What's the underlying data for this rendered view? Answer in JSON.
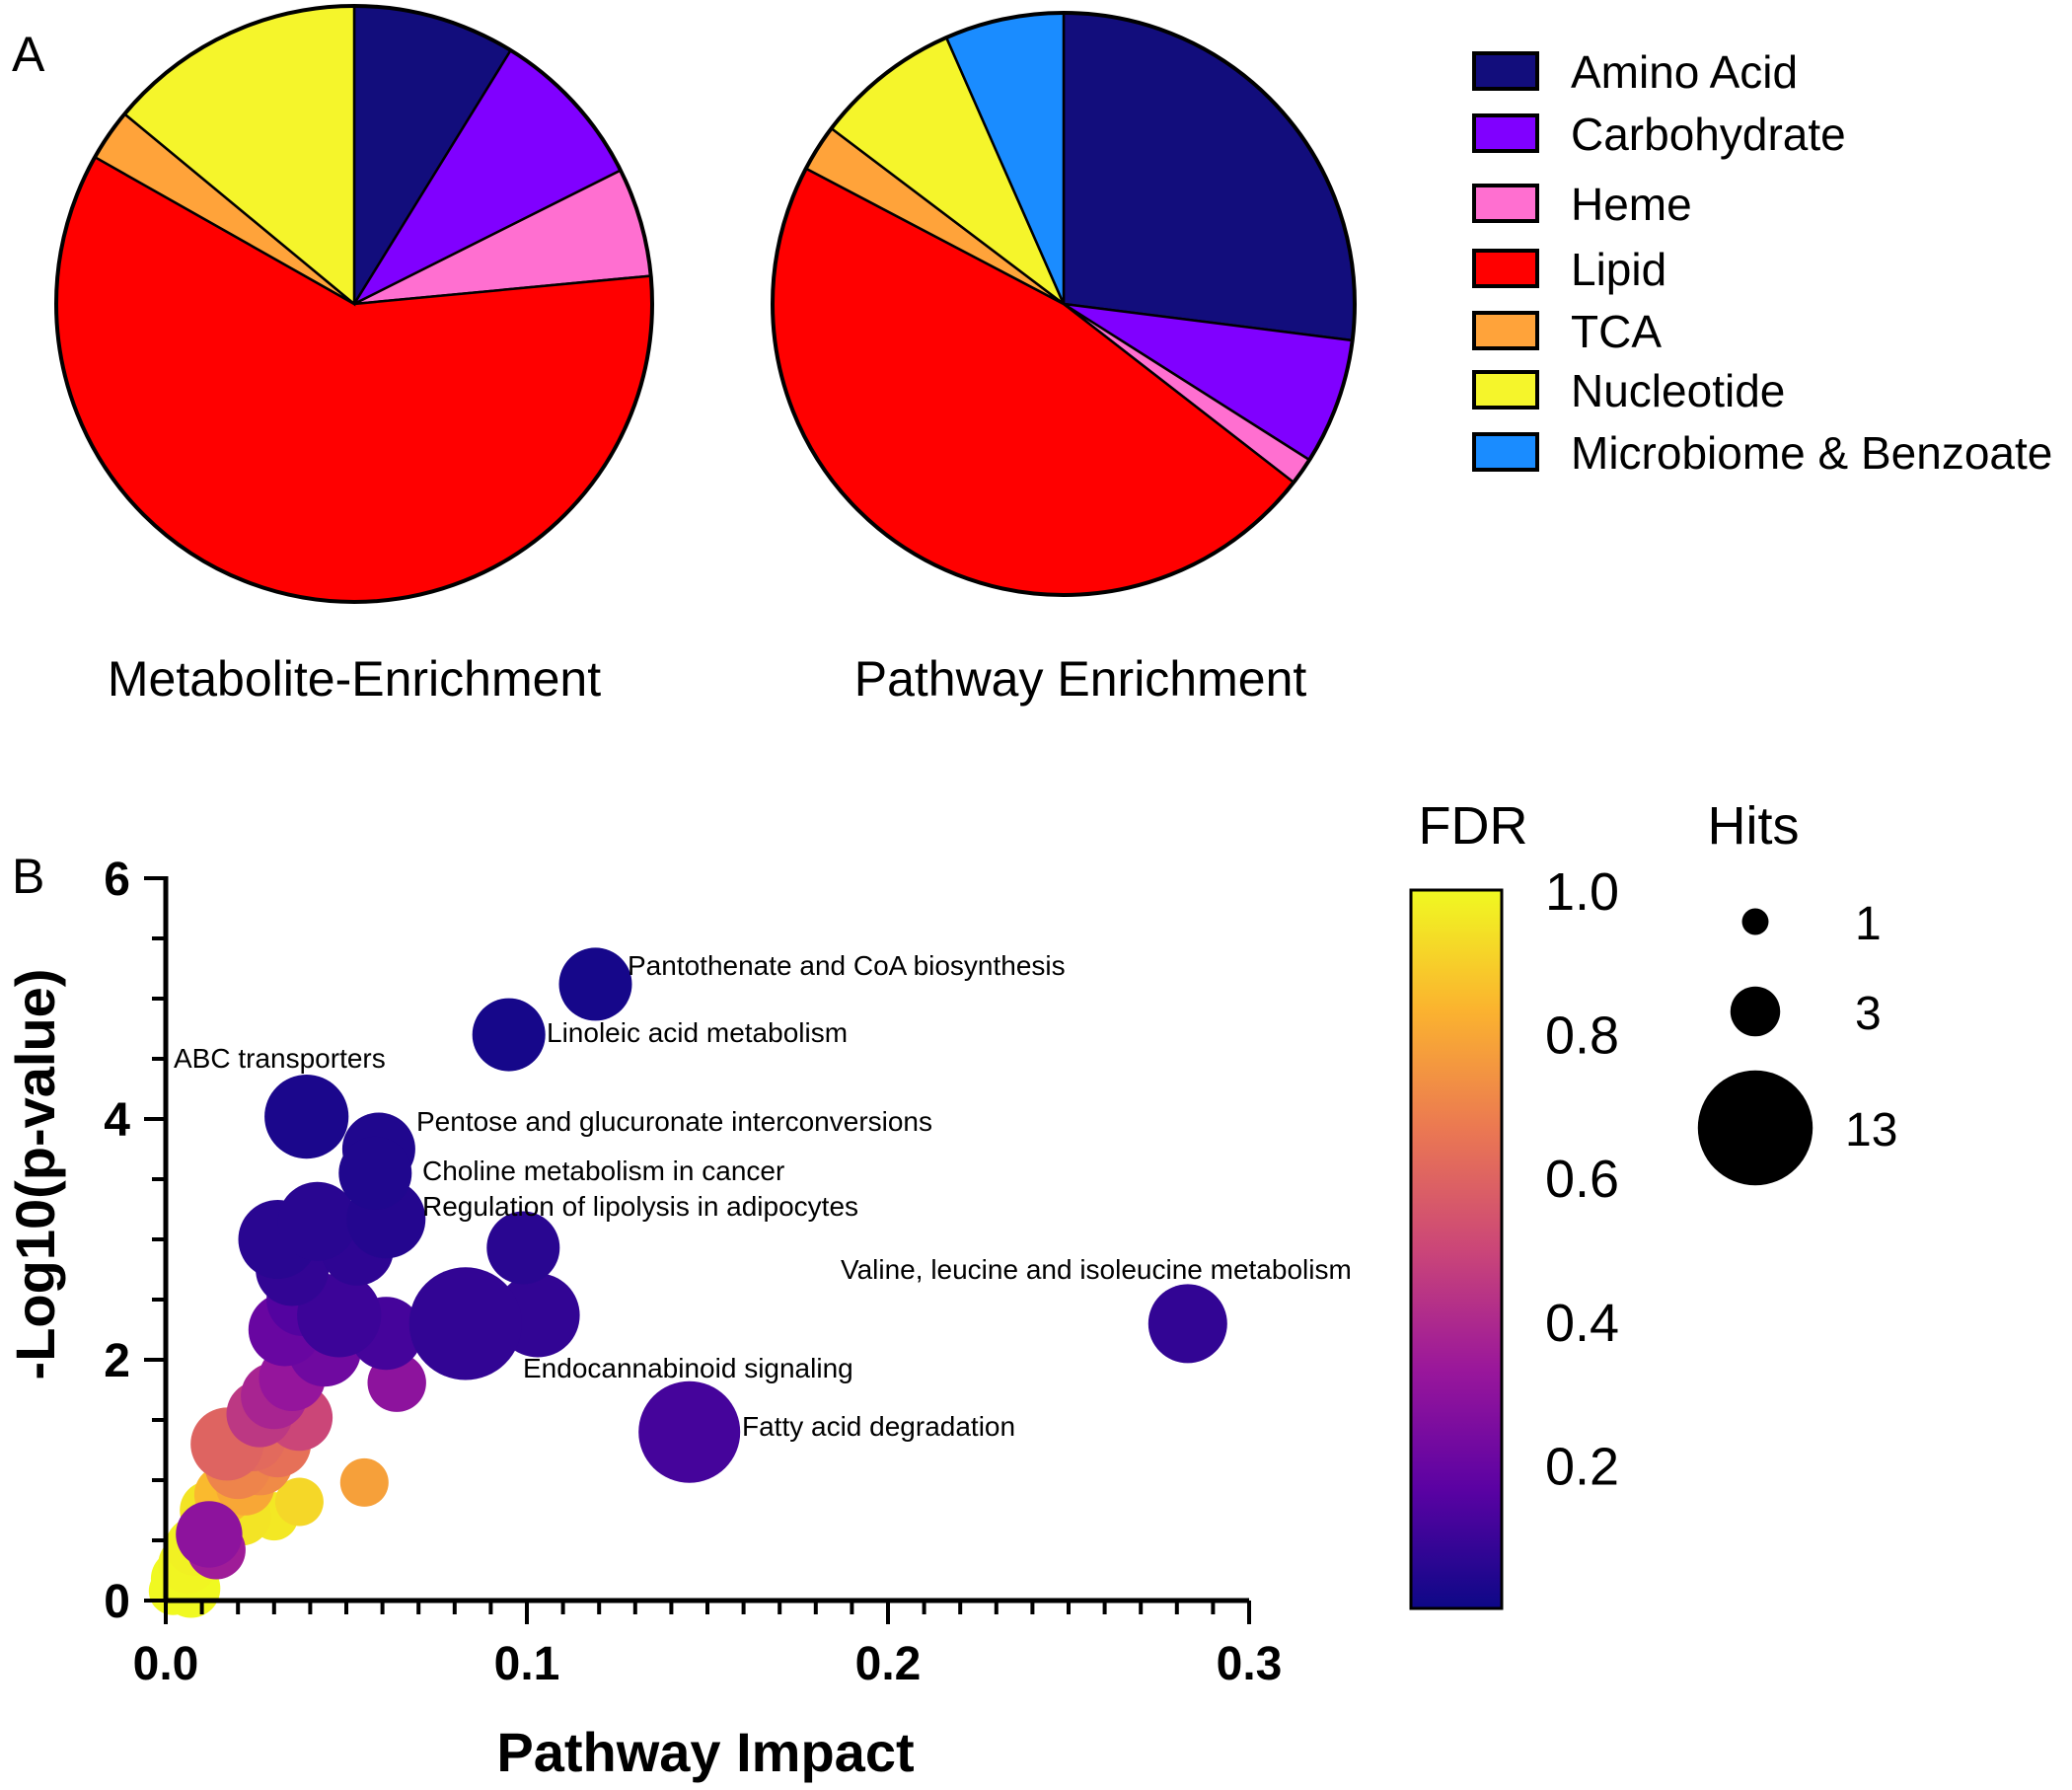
{
  "panel_a": {
    "letter": "A"
  },
  "panel_b": {
    "letter": "B"
  },
  "chart_data": [
    {
      "type": "pie",
      "title": "Metabolite-Enrichment",
      "categories": [
        "Amino Acid",
        "Carbohydrate",
        "Heme",
        "Lipid",
        "TCA",
        "Nucleotide"
      ],
      "values": [
        8.8,
        8.8,
        5.9,
        59.7,
        2.8,
        14.0
      ],
      "colors": [
        "#120D7C",
        "#8000FF",
        "#FF6FD0",
        "#FF0000",
        "#FFA33A",
        "#F5F52B"
      ]
    },
    {
      "type": "pie",
      "title": "Pathway Enrichment",
      "categories": [
        "Amino Acid",
        "Carbohydrate",
        "Heme",
        "Lipid",
        "TCA",
        "Nucleotide",
        "Microbiome & Benzoate"
      ],
      "values": [
        27.0,
        7.0,
        1.5,
        47.2,
        2.6,
        8.1,
        6.6
      ],
      "colors": [
        "#120D7C",
        "#8000FF",
        "#FF6FD0",
        "#FF0000",
        "#FFA33A",
        "#F5F52B",
        "#1A8CFF"
      ]
    },
    {
      "type": "legend",
      "entries": [
        "Amino Acid",
        "Carbohydrate",
        "Heme",
        "Lipid",
        "TCA",
        "Nucleotide",
        "Microbiome & Benzoate"
      ],
      "colors": [
        "#120D7C",
        "#8000FF",
        "#FF6FD0",
        "#FF0000",
        "#FFA33A",
        "#F5F52B",
        "#1A8CFF"
      ],
      "placement": "right"
    },
    {
      "type": "scatter",
      "xlabel": "Pathway Impact",
      "ylabel": "-Log10(p-value)",
      "xlim": [
        0,
        0.3
      ],
      "ylim": [
        0,
        6
      ],
      "xticks": [
        "0.0",
        "0.1",
        "0.2",
        "0.3"
      ],
      "xtick_values": [
        0,
        0.1,
        0.2,
        0.3
      ],
      "yticks": [
        "0",
        "2",
        "4",
        "6"
      ],
      "ytick_values": [
        0,
        2,
        4,
        6
      ],
      "colorbar": {
        "title": "FDR",
        "min": 0,
        "max": 1,
        "ticks": [
          "1.0",
          "0.8",
          "0.6",
          "0.4",
          "0.2"
        ],
        "tick_values": [
          1.0,
          0.8,
          0.6,
          0.4,
          0.2
        ],
        "colors": [
          "#0D0887",
          "#5B02A3",
          "#9A179B",
          "#CB4678",
          "#EB7852",
          "#FBB32F",
          "#F0F921"
        ]
      },
      "size_legend": {
        "title": "Hits",
        "entries": [
          {
            "label": "1",
            "hits": 1
          },
          {
            "label": "3",
            "hits": 3
          },
          {
            "label": "13",
            "hits": 13
          }
        ]
      },
      "points": [
        {
          "x": 0.119,
          "y": 5.12,
          "hits": 4,
          "fdr": 0.02,
          "label": "Pantothenate and CoA biosynthesis"
        },
        {
          "x": 0.095,
          "y": 4.7,
          "hits": 4,
          "fdr": 0.02,
          "label": "Linoleic acid metabolism"
        },
        {
          "x": 0.039,
          "y": 4.02,
          "hits": 6,
          "fdr": 0.03,
          "label": "ABC transporters"
        },
        {
          "x": 0.059,
          "y": 3.75,
          "hits": 4,
          "fdr": 0.04,
          "label": "Pentose and glucuronate interconversions"
        },
        {
          "x": 0.058,
          "y": 3.55,
          "hits": 4,
          "fdr": 0.04,
          "label": "Choline metabolism in cancer"
        },
        {
          "x": 0.061,
          "y": 3.17,
          "hits": 5,
          "fdr": 0.05,
          "label": "Regulation of lipolysis in adipocytes"
        },
        {
          "x": 0.099,
          "y": 2.93,
          "hits": 4,
          "fdr": 0.06,
          "label": ""
        },
        {
          "x": 0.283,
          "y": 2.3,
          "hits": 5,
          "fdr": 0.08,
          "label": "Valine, leucine and isoleucine metabolism"
        },
        {
          "x": 0.083,
          "y": 2.3,
          "hits": 13,
          "fdr": 0.08,
          "label": "Endocannabinoid signaling"
        },
        {
          "x": 0.103,
          "y": 2.37,
          "hits": 6,
          "fdr": 0.08,
          "label": ""
        },
        {
          "x": 0.145,
          "y": 1.4,
          "hits": 10,
          "fdr": 0.12,
          "label": "Fatty acid degradation"
        },
        {
          "x": 0.031,
          "y": 3.0,
          "hits": 5,
          "fdr": 0.06,
          "label": ""
        },
        {
          "x": 0.042,
          "y": 3.15,
          "hits": 5,
          "fdr": 0.06,
          "label": ""
        },
        {
          "x": 0.035,
          "y": 2.75,
          "hits": 4,
          "fdr": 0.08,
          "label": ""
        },
        {
          "x": 0.053,
          "y": 2.92,
          "hits": 4,
          "fdr": 0.07,
          "label": ""
        },
        {
          "x": 0.048,
          "y": 2.37,
          "hits": 6,
          "fdr": 0.1,
          "label": ""
        },
        {
          "x": 0.061,
          "y": 2.22,
          "hits": 4,
          "fdr": 0.12,
          "label": ""
        },
        {
          "x": 0.038,
          "y": 2.5,
          "hits": 4,
          "fdr": 0.15,
          "label": ""
        },
        {
          "x": 0.033,
          "y": 2.25,
          "hits": 4,
          "fdr": 0.2,
          "label": ""
        },
        {
          "x": 0.044,
          "y": 2.08,
          "hits": 4,
          "fdr": 0.22,
          "label": ""
        },
        {
          "x": 0.064,
          "y": 1.81,
          "hits": 2,
          "fdr": 0.3,
          "label": ""
        },
        {
          "x": 0.035,
          "y": 1.85,
          "hits": 3,
          "fdr": 0.32,
          "label": ""
        },
        {
          "x": 0.03,
          "y": 1.7,
          "hits": 3,
          "fdr": 0.38,
          "label": ""
        },
        {
          "x": 0.026,
          "y": 1.55,
          "hits": 3,
          "fdr": 0.45,
          "label": ""
        },
        {
          "x": 0.037,
          "y": 1.52,
          "hits": 3,
          "fdr": 0.5,
          "label": ""
        },
        {
          "x": 0.017,
          "y": 1.3,
          "hits": 4,
          "fdr": 0.6,
          "label": ""
        },
        {
          "x": 0.024,
          "y": 1.35,
          "hits": 3,
          "fdr": 0.62,
          "label": ""
        },
        {
          "x": 0.031,
          "y": 1.3,
          "hits": 3,
          "fdr": 0.64,
          "label": ""
        },
        {
          "x": 0.02,
          "y": 1.12,
          "hits": 3,
          "fdr": 0.7,
          "label": ""
        },
        {
          "x": 0.026,
          "y": 1.15,
          "hits": 3,
          "fdr": 0.72,
          "label": ""
        },
        {
          "x": 0.055,
          "y": 0.98,
          "hits": 1,
          "fdr": 0.78,
          "label": ""
        },
        {
          "x": 0.022,
          "y": 0.95,
          "hits": 2,
          "fdr": 0.8,
          "label": ""
        },
        {
          "x": 0.016,
          "y": 0.88,
          "hits": 2,
          "fdr": 0.85,
          "label": ""
        },
        {
          "x": 0.037,
          "y": 0.82,
          "hits": 1,
          "fdr": 0.92,
          "label": ""
        },
        {
          "x": 0.012,
          "y": 0.75,
          "hits": 2,
          "fdr": 0.95,
          "label": ""
        },
        {
          "x": 0.021,
          "y": 0.7,
          "hits": 2,
          "fdr": 0.95,
          "label": ""
        },
        {
          "x": 0.03,
          "y": 0.7,
          "hits": 1,
          "fdr": 0.96,
          "label": ""
        },
        {
          "x": 0.012,
          "y": 0.55,
          "hits": 3,
          "fdr": 0.3,
          "label": ""
        },
        {
          "x": 0.014,
          "y": 0.42,
          "hits": 2,
          "fdr": 0.35,
          "label": ""
        },
        {
          "x": 0.008,
          "y": 0.45,
          "hits": 2,
          "fdr": 0.98,
          "label": ""
        },
        {
          "x": 0.006,
          "y": 0.3,
          "hits": 2,
          "fdr": 0.99,
          "label": ""
        },
        {
          "x": 0.004,
          "y": 0.18,
          "hits": 2,
          "fdr": 1.0,
          "label": ""
        },
        {
          "x": 0.007,
          "y": 0.1,
          "hits": 2,
          "fdr": 1.0,
          "label": ""
        },
        {
          "x": 0.002,
          "y": 0.08,
          "hits": 1,
          "fdr": 1.0,
          "label": ""
        }
      ]
    }
  ]
}
